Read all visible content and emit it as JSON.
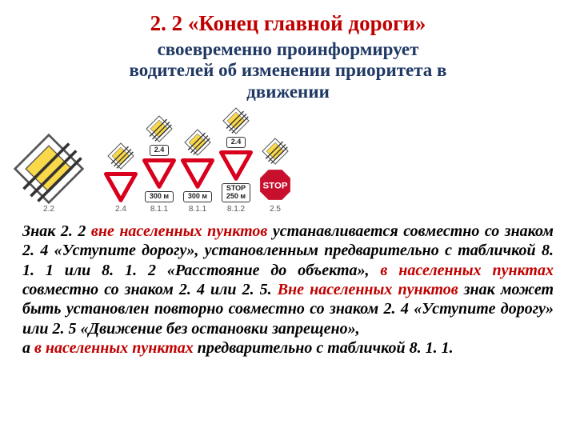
{
  "title": "2. 2 «Конец главной дороги»",
  "subtitle_l1": "своевременно проинформирует",
  "subtitle_l2": "водителей об изменении приоритета в",
  "subtitle_l3": "движении",
  "big_sign_label": "2.2",
  "colors": {
    "accent_red": "#c00000",
    "dark_blue": "#1f3864",
    "sign_yellow": "#f9d84a",
    "sign_border": "#555555",
    "sign_stripes": "#333333",
    "yield_red": "#d8001d",
    "stop_red": "#c8102e",
    "plate_border": "#333333",
    "text_black": "#000000",
    "bg": "#ffffff"
  },
  "columns": [
    {
      "id": "big",
      "items": [
        {
          "type": "priority_end",
          "size": 90
        }
      ],
      "label": "2.2"
    },
    {
      "id": "c1",
      "items": [
        {
          "type": "priority_end",
          "size": 34
        },
        {
          "type": "yield",
          "size": 42
        }
      ],
      "label": "2.4"
    },
    {
      "id": "c2",
      "items": [
        {
          "type": "priority_end",
          "size": 34
        },
        {
          "type": "plate",
          "text": "2.4"
        },
        {
          "type": "yield",
          "size": 42
        },
        {
          "type": "plate",
          "text": "300 м"
        }
      ],
      "label": "8.1.1"
    },
    {
      "id": "c3",
      "items": [
        {
          "type": "priority_end",
          "size": 34
        },
        {
          "type": "yield",
          "size": 42
        },
        {
          "type": "plate",
          "text": "300 м"
        }
      ],
      "label": "8.1.1"
    },
    {
      "id": "c4",
      "items": [
        {
          "type": "priority_end",
          "size": 34
        },
        {
          "type": "plate",
          "text": "2.4"
        },
        {
          "type": "yield",
          "size": 42
        },
        {
          "type": "plate",
          "text": "STOP\n250 м"
        }
      ],
      "label": "8.1.2"
    },
    {
      "id": "c5",
      "items": [
        {
          "type": "priority_end",
          "size": 34
        },
        {
          "type": "stop",
          "size": 44
        }
      ],
      "label": "2.5"
    }
  ],
  "para": {
    "p1a": "Знак 2. 2 ",
    "p1b": "вне населенных пунктов",
    "p1c": " устанавливается совместно со знаком 2. 4 «Уступите дорогу», установленным предварительно с табличкой 8. 1. 1 или 8. 1. 2 «Расстояние до объекта», ",
    "p1d": "в населенных пунктах",
    "p1e": " совместно со знаком 2. 4 или 2. 5. ",
    "p1f": "Вне населенных пунктов",
    "p1g": " знак может быть установлен повторно совместно со знаком 2. 4 «Уступите дорогу» или 2. 5 «Движение без остановки запрещено»,",
    "p2a": "а ",
    "p2b": "в населенных пунктах",
    "p2c": " предварительно с табличкой 8. 1. 1."
  }
}
